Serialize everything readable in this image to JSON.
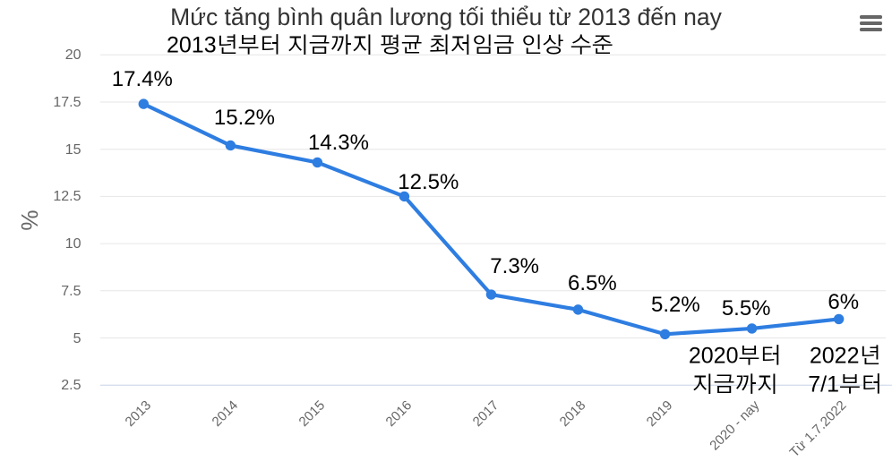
{
  "chart_data": {
    "type": "line",
    "title": "Mức tăng bình quân lương tối thiểu từ 2013 đến nay",
    "subtitle": "2013년부터 지금까지 평균 최저임금 인상 수준",
    "ylabel": "%",
    "xlabel": "",
    "categories": [
      "2013",
      "2014",
      "2015",
      "2016",
      "2017",
      "2018",
      "2019",
      "2020 - nay",
      "Từ 1.7.2022"
    ],
    "values": [
      17.4,
      15.2,
      14.3,
      12.5,
      7.3,
      6.5,
      5.2,
      5.5,
      6
    ],
    "point_labels": [
      "17.4%",
      "15.2%",
      "14.3%",
      "12.5%",
      "7.3%",
      "6.5%",
      "5.2%",
      "5.5%",
      "6%"
    ],
    "yticks": [
      2.5,
      5,
      7.5,
      10,
      12.5,
      15,
      17.5,
      20
    ],
    "ylim": [
      2.5,
      20
    ],
    "grid": true,
    "legend": "none",
    "annotations": [
      {
        "text": "2020부터\n지금까지",
        "category": "2020 - nay"
      },
      {
        "text": "2022년\n7/1부터",
        "category": "Từ 1.7.2022"
      }
    ],
    "colors": {
      "series": "#2e7de1",
      "grid": "#e6e6e6",
      "axis_line": "#ccd6eb",
      "axis_labels": "#666666",
      "title": "#333333",
      "subtitle": "#000000",
      "point_labels": "#000000",
      "annotations": "#000000",
      "menu_icon": "#666666",
      "background": "#ffffff"
    }
  },
  "toolbar": {
    "context_menu_tooltip": "Chart context menu"
  }
}
